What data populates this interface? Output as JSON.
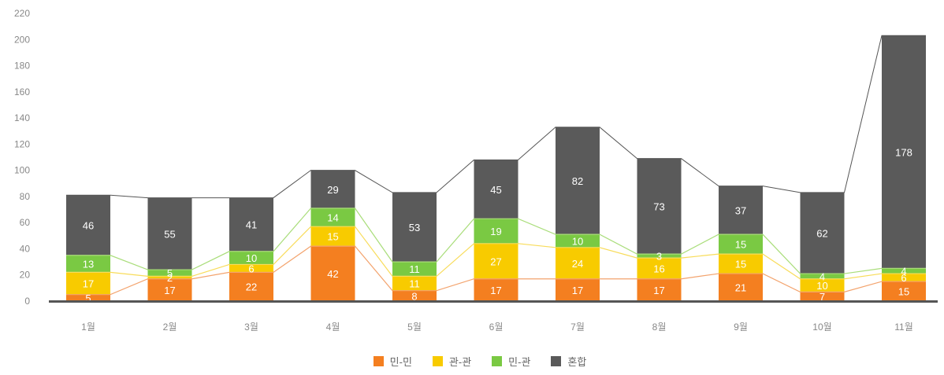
{
  "chart_data": {
    "type": "bar",
    "stacked": true,
    "categories": [
      "1월",
      "2월",
      "3월",
      "4월",
      "5월",
      "6월",
      "7월",
      "8월",
      "9월",
      "10월",
      "11월"
    ],
    "series": [
      {
        "name": "민-민",
        "color": "#f47f20",
        "values": [
          5,
          17,
          22,
          42,
          8,
          17,
          17,
          17,
          21,
          7,
          15
        ]
      },
      {
        "name": "관-관",
        "color": "#f8cb00",
        "values": [
          17,
          2,
          6,
          15,
          11,
          27,
          24,
          16,
          15,
          10,
          6
        ]
      },
      {
        "name": "민-관",
        "color": "#7ac943",
        "values": [
          13,
          5,
          10,
          14,
          11,
          19,
          10,
          3,
          15,
          4,
          4
        ]
      },
      {
        "name": "혼합",
        "color": "#5a5a5a",
        "values": [
          46,
          55,
          41,
          29,
          53,
          45,
          82,
          73,
          37,
          62,
          178
        ]
      }
    ],
    "ylim": [
      0,
      220
    ],
    "yticks": [
      "0",
      "20",
      "40",
      "60",
      "80",
      "100",
      "120",
      "140",
      "160",
      "180",
      "200",
      "220"
    ],
    "grid": false,
    "legend_position": "bottom",
    "title": "",
    "xlabel": "",
    "ylabel": ""
  }
}
